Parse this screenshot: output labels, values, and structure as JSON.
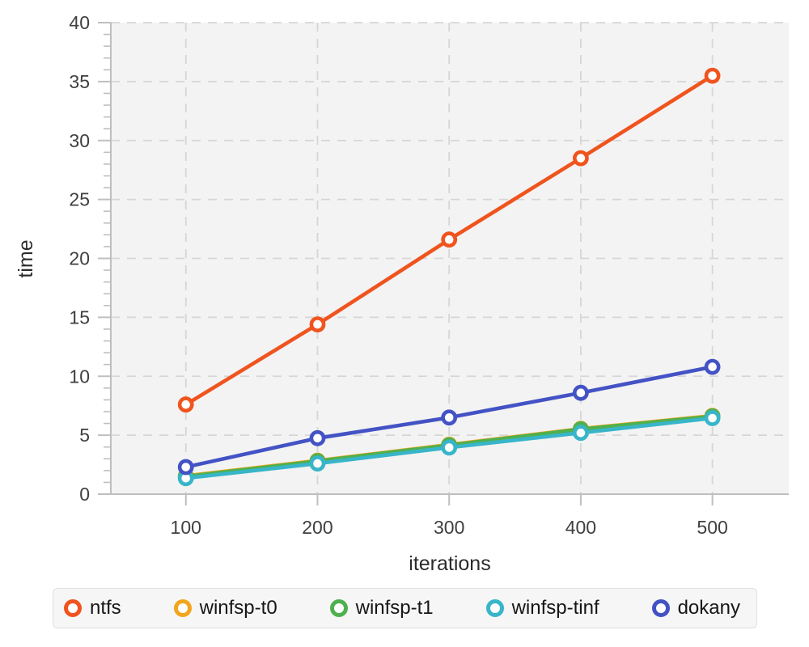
{
  "chart_data": {
    "type": "line",
    "title": "",
    "xlabel": "iterations",
    "ylabel": "time",
    "x": [
      100,
      200,
      300,
      400,
      500
    ],
    "series": [
      {
        "name": "ntfs",
        "color": "#f0541e",
        "values": [
          7.6,
          14.4,
          21.6,
          28.5,
          35.5
        ]
      },
      {
        "name": "winfsp-t0",
        "color": "#f2a61c",
        "values": [
          1.55,
          2.85,
          4.2,
          5.55,
          6.65
        ]
      },
      {
        "name": "winfsp-t1",
        "color": "#4fb04f",
        "values": [
          1.5,
          2.8,
          4.15,
          5.5,
          6.6
        ]
      },
      {
        "name": "winfsp-tinf",
        "color": "#38b5c9",
        "values": [
          1.35,
          2.6,
          3.95,
          5.2,
          6.45
        ]
      },
      {
        "name": "dokany",
        "color": "#4353c5",
        "values": [
          2.3,
          4.75,
          6.5,
          8.6,
          10.8
        ]
      }
    ],
    "xlim": [
      43,
      558
    ],
    "ylim": [
      0,
      40
    ],
    "x_ticks": [
      100,
      200,
      300,
      400,
      500
    ],
    "y_major_step": 5,
    "y_minor_step": 1,
    "grid": "dashed",
    "legend_position": "bottom",
    "marker": "open-circle",
    "colors": {
      "plot_bg": "#f3f3f3",
      "grid": "#d6d6d6",
      "axis": "#bfbfbf",
      "tick_label": "#3f3f3f",
      "axis_title": "#2b2b2b",
      "legend_bg": "#f6f6f6",
      "legend_border": "#e0e0e0",
      "legend_text": "#161616"
    }
  },
  "legend": {
    "items": [
      "ntfs",
      "winfsp-t0",
      "winfsp-t1",
      "winfsp-tinf",
      "dokany"
    ]
  }
}
